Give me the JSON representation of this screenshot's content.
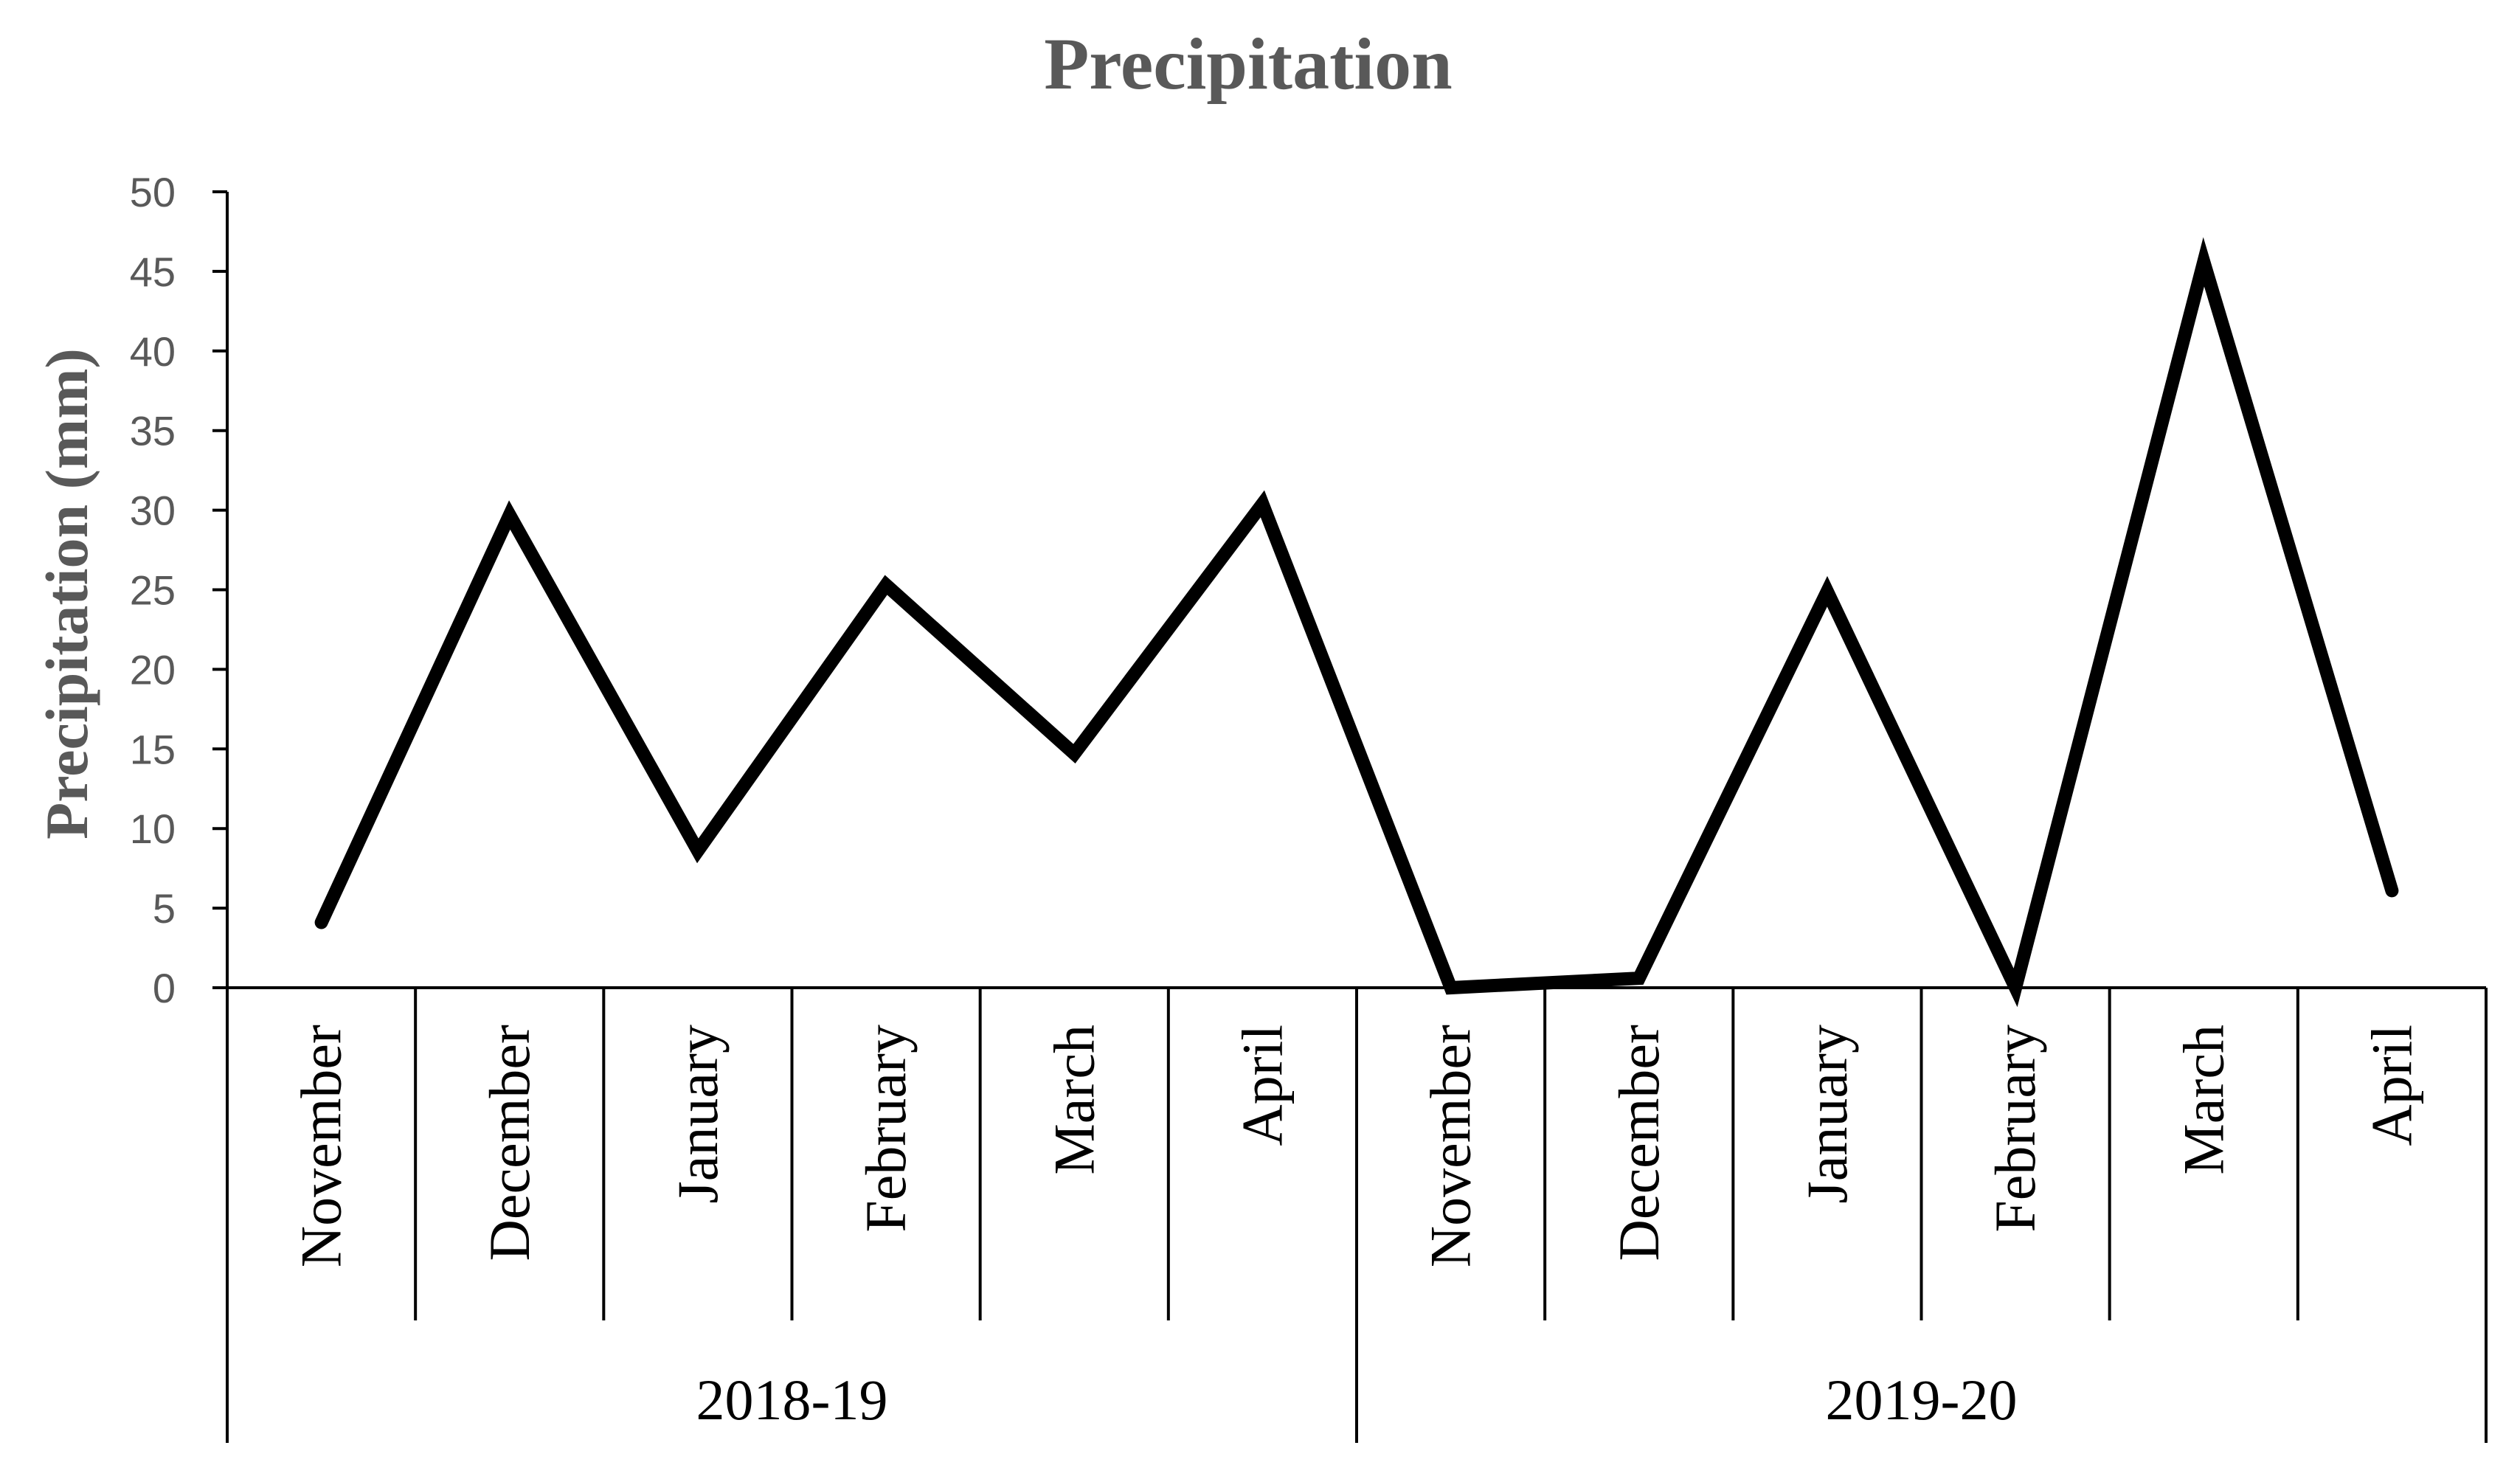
{
  "chart_data": {
    "type": "line",
    "title": "Precipitation",
    "ylabel": "Precipitation  (mm)",
    "xlabel": "",
    "ylim": [
      0,
      50
    ],
    "yticks": [
      "0",
      "5",
      "10",
      "15",
      "20",
      "25",
      "30",
      "35",
      "40",
      "45",
      "50"
    ],
    "grid": false,
    "groups": [
      {
        "label": "2018-19",
        "categories": [
          "November",
          "December",
          "January",
          "February",
          "March",
          "April"
        ]
      },
      {
        "label": "2019-20",
        "categories": [
          "November",
          "December",
          "January",
          "February",
          "March",
          "April"
        ]
      }
    ],
    "categories": [
      "November",
      "December",
      "January",
      "February",
      "March",
      "April",
      "November",
      "December",
      "January",
      "February",
      "March",
      "April"
    ],
    "series": [
      {
        "values": [
          4.1,
          29.7,
          8.6,
          25.3,
          14.7,
          30.4,
          0.0,
          0.6,
          24.9,
          0.0,
          45.6,
          6.1
        ]
      }
    ],
    "colors": {
      "line": "#000000",
      "axis": "#000000",
      "title": "#595959",
      "tick_labels": "#595959"
    }
  }
}
